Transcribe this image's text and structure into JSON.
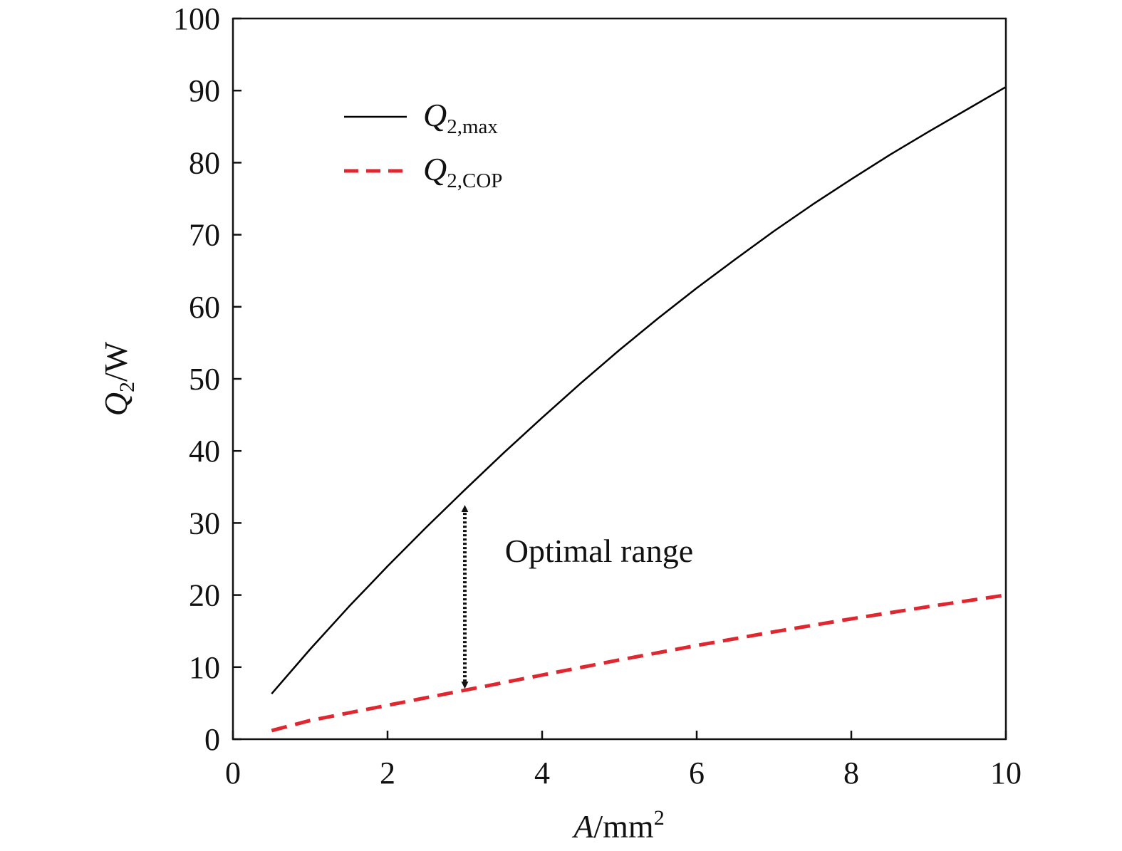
{
  "chart_data": {
    "type": "line",
    "xlabel": {
      "var": "A",
      "unit": "/mm",
      "sup": "2"
    },
    "ylabel": {
      "var": "Q",
      "sub": "2",
      "unit": "/W"
    },
    "xlim": [
      0,
      10
    ],
    "ylim": [
      0,
      100
    ],
    "xticks": [
      "0",
      "2",
      "4",
      "6",
      "8",
      "10"
    ],
    "yticks": [
      "0",
      "10",
      "20",
      "30",
      "40",
      "50",
      "60",
      "70",
      "80",
      "90",
      "100"
    ],
    "grid": false,
    "legend_position": "top-left",
    "series": [
      {
        "key": "q2max",
        "legend": {
          "base": "Q",
          "sub": "2,max"
        },
        "color": "#000000",
        "style": "solid",
        "x": [
          0.5,
          1,
          1.5,
          2,
          2.5,
          3,
          3.5,
          4,
          4.5,
          5,
          5.5,
          6,
          6.5,
          7,
          7.5,
          8,
          8.5,
          9,
          9.5,
          10
        ],
        "y": [
          6.3,
          12.5,
          18.4,
          24.0,
          29.4,
          34.6,
          39.7,
          44.6,
          49.4,
          54.0,
          58.4,
          62.6,
          66.6,
          70.5,
          74.2,
          77.7,
          81.1,
          84.3,
          87.4,
          90.5
        ]
      },
      {
        "key": "q2cop",
        "legend": {
          "base": "Q",
          "sub": "2,COP"
        },
        "color": "#e0262e",
        "style": "dashed",
        "x": [
          0.5,
          1,
          2,
          3,
          4,
          5,
          6,
          7,
          8,
          9,
          10
        ],
        "y": [
          1.2,
          2.6,
          4.7,
          6.8,
          8.9,
          11.0,
          13.0,
          14.9,
          16.7,
          18.4,
          20.0
        ]
      }
    ],
    "annotation": {
      "text": "Optimal range",
      "arrow_x": 3,
      "arrow_from_y": 32,
      "arrow_to_y": 7.5,
      "text_x": 3.5,
      "text_y": 26
    }
  }
}
